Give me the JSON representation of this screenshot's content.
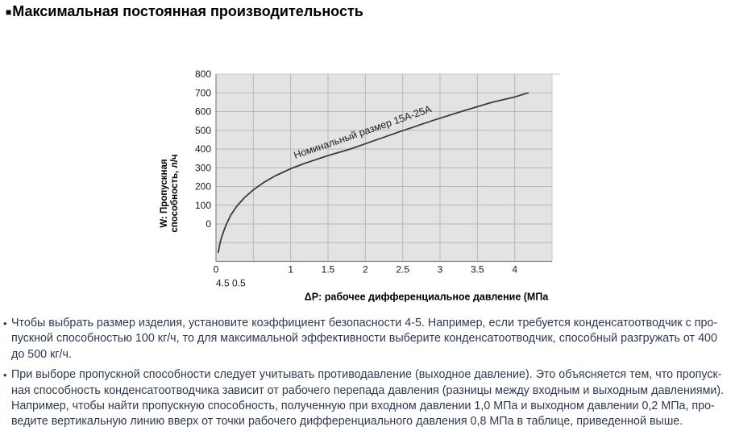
{
  "page": {
    "title_marker": "■",
    "title": "Максимальная постоянная производительность"
  },
  "chart_data": {
    "type": "line",
    "title": "",
    "xlabel": "ΔP: рабочее дифференциальное давление (МПа",
    "ylabel_lines": [
      "W: Пропускная",
      "способность, л/ч"
    ],
    "xlim": [
      0,
      4.5
    ],
    "ylim": [
      -200,
      800
    ],
    "x_grid_step": 0.5,
    "y_grid_step": 100,
    "grid": true,
    "legend_position": "none",
    "x_ticks": [
      {
        "v": 0,
        "label": "0"
      },
      {
        "v": 1,
        "label": "1"
      },
      {
        "v": 1.5,
        "label": "1.5"
      },
      {
        "v": 2,
        "label": "2"
      },
      {
        "v": 2.5,
        "label": "2.5"
      },
      {
        "v": 3,
        "label": "3"
      },
      {
        "v": 3.5,
        "label": "3.5"
      },
      {
        "v": 4,
        "label": "4"
      }
    ],
    "stray_tick_text": "4.5 0.5",
    "y_ticks": [
      {
        "v": 0,
        "label": "0"
      },
      {
        "v": 100,
        "label": "100"
      },
      {
        "v": 200,
        "label": "200"
      },
      {
        "v": 300,
        "label": "300"
      },
      {
        "v": 400,
        "label": "400"
      },
      {
        "v": 500,
        "label": "500"
      },
      {
        "v": 600,
        "label": "600"
      },
      {
        "v": 700,
        "label": "700"
      },
      {
        "v": 800,
        "label": "800"
      }
    ],
    "series": [
      {
        "name": "Номинальный размер 15А-25А",
        "points": [
          [
            0.03,
            -152
          ],
          [
            0.05,
            -110
          ],
          [
            0.07,
            -78
          ],
          [
            0.1,
            -42
          ],
          [
            0.14,
            0
          ],
          [
            0.2,
            48
          ],
          [
            0.28,
            95
          ],
          [
            0.38,
            140
          ],
          [
            0.5,
            182
          ],
          [
            0.65,
            224
          ],
          [
            0.8,
            258
          ],
          [
            1.0,
            295
          ],
          [
            1.2,
            325
          ],
          [
            1.5,
            365
          ],
          [
            1.8,
            400
          ],
          [
            2.1,
            442
          ],
          [
            2.5,
            498
          ],
          [
            2.9,
            552
          ],
          [
            3.3,
            602
          ],
          [
            3.7,
            650
          ],
          [
            4.0,
            678
          ],
          [
            4.18,
            700
          ]
        ]
      }
    ],
    "series_label": {
      "text": "Номинальный размер 15А-25А",
      "x": 1.06,
      "y": 348,
      "angle": -19
    },
    "colors": {
      "plot_bg": "#e3e3e3",
      "grid": "#b7b7b7",
      "axis": "#858585",
      "border": "#c8c8c8",
      "curve": "#3b3b3b",
      "text": "#1a1a1a"
    }
  },
  "notes": [
    {
      "marker": "•",
      "lines": [
        "Чтобы выбрать размер изделия, установите коэффициент безопасности 4-5. Например, если требуется конденсатоотводчик с про-",
        "пускной способностью 100 кг/ч, то для максимальной эффективности выберите конденсатоотводчик, способный разгружать от 400",
        "до 500 кг/ч."
      ]
    },
    {
      "marker": "•",
      "lines": [
        "При выборе пропускной способности следует учитывать противодавление (выходное давление). Это объясняется тем, что пропуск-",
        "ная способность конденсатоотводчика зависит от рабочего перепада давления (разницы между входным и выходным давлениями).",
        "Например, чтобы найти пропускную способность, полученную при входном давлении 1,0 МПа и выходном давлении 0,2 МПа, про-",
        "ведите вертикальную линию вверх от точки рабочего дифференциального давления 0,8 МПа в таблице, приведенной выше."
      ]
    }
  ]
}
